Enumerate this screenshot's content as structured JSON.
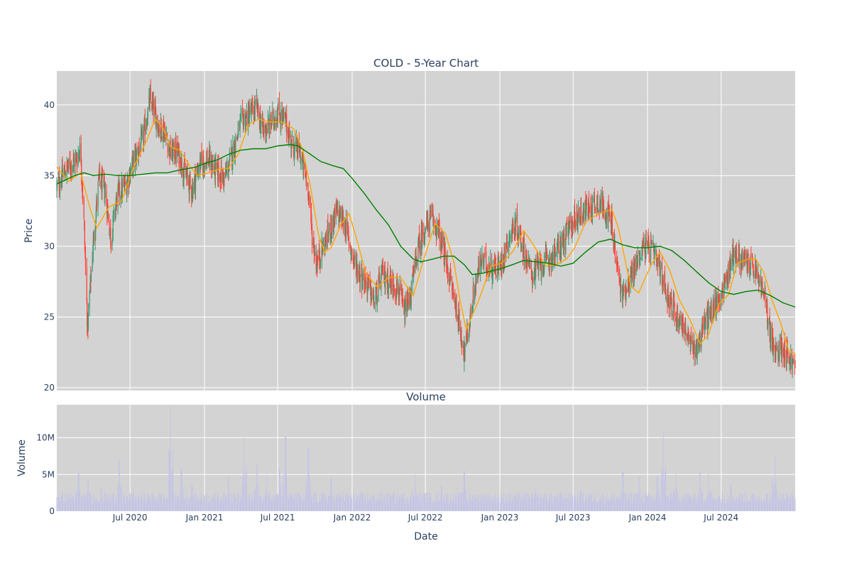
{
  "chart_data": [
    {
      "type": "candlestick",
      "title": "COLD - 5-Year Chart",
      "xlabel": "",
      "ylabel": "Price",
      "ylim": [
        19.8,
        42.4
      ],
      "xlim": [
        "2020-01-02",
        "2024-12-31"
      ],
      "yticks": [
        20,
        25,
        30,
        35,
        40
      ],
      "grid": true,
      "background": "#d3d3d3",
      "up_color": "#3d9970",
      "down_color": "#ff4136",
      "ma_short": {
        "color": "#ffa500",
        "values": [
          [
            "2020-01-02",
            35.6
          ],
          [
            "2020-02-01",
            34.6
          ],
          [
            "2020-03-01",
            35.2
          ],
          [
            "2020-03-25",
            32.6
          ],
          [
            "2020-04-10",
            31.3
          ],
          [
            "2020-05-10",
            32.8
          ],
          [
            "2020-06-10",
            33.2
          ],
          [
            "2020-07-10",
            35.6
          ],
          [
            "2020-08-10",
            37.4
          ],
          [
            "2020-09-01",
            39.0
          ],
          [
            "2020-09-20",
            38.4
          ],
          [
            "2020-10-10",
            37.0
          ],
          [
            "2020-11-01",
            36.8
          ],
          [
            "2020-11-25",
            35.7
          ],
          [
            "2020-12-15",
            35.0
          ],
          [
            "2021-01-10",
            35.2
          ],
          [
            "2021-02-10",
            35.5
          ],
          [
            "2021-03-01",
            35.5
          ],
          [
            "2021-03-25",
            36.5
          ],
          [
            "2021-04-20",
            38.6
          ],
          [
            "2021-05-15",
            39.0
          ],
          [
            "2021-06-10",
            38.8
          ],
          [
            "2021-07-10",
            38.8
          ],
          [
            "2021-07-25",
            38.6
          ],
          [
            "2021-08-10",
            38.3
          ],
          [
            "2021-09-01",
            36.8
          ],
          [
            "2021-09-20",
            34.2
          ],
          [
            "2021-10-10",
            30.8
          ],
          [
            "2021-10-25",
            29.6
          ],
          [
            "2021-11-10",
            29.9
          ],
          [
            "2021-12-05",
            31.6
          ],
          [
            "2021-12-25",
            32.3
          ],
          [
            "2022-01-15",
            30.2
          ],
          [
            "2022-02-05",
            28.0
          ],
          [
            "2022-03-05",
            27.1
          ],
          [
            "2022-04-01",
            27.8
          ],
          [
            "2022-05-01",
            27.8
          ],
          [
            "2022-06-01",
            26.5
          ],
          [
            "2022-06-25",
            28.9
          ],
          [
            "2022-07-25",
            31.6
          ],
          [
            "2022-08-20",
            30.9
          ],
          [
            "2022-09-10",
            28.8
          ],
          [
            "2022-09-25",
            26.1
          ],
          [
            "2022-10-10",
            24.1
          ],
          [
            "2022-11-10",
            26.2
          ],
          [
            "2022-12-10",
            28.6
          ],
          [
            "2023-01-05",
            28.8
          ],
          [
            "2023-02-01",
            29.6
          ],
          [
            "2023-03-01",
            31.1
          ],
          [
            "2023-03-25",
            30.1
          ],
          [
            "2023-04-25",
            28.6
          ],
          [
            "2023-05-20",
            28.7
          ],
          [
            "2023-06-15",
            29.1
          ],
          [
            "2023-07-05",
            29.9
          ],
          [
            "2023-08-01",
            31.7
          ],
          [
            "2023-09-01",
            32.3
          ],
          [
            "2023-10-05",
            32.6
          ],
          [
            "2023-10-20",
            31.4
          ],
          [
            "2023-11-01",
            29.8
          ],
          [
            "2023-11-20",
            27.2
          ],
          [
            "2023-12-10",
            26.7
          ],
          [
            "2024-01-10",
            28.7
          ],
          [
            "2024-02-01",
            29.6
          ],
          [
            "2024-02-25",
            28.3
          ],
          [
            "2024-03-20",
            26.2
          ],
          [
            "2024-04-15",
            24.8
          ],
          [
            "2024-05-10",
            23.1
          ],
          [
            "2024-05-30",
            23.7
          ],
          [
            "2024-06-25",
            25.9
          ],
          [
            "2024-07-20",
            26.6
          ],
          [
            "2024-08-10",
            28.8
          ],
          [
            "2024-09-05",
            29.1
          ],
          [
            "2024-09-25",
            29.1
          ],
          [
            "2024-10-15",
            28.1
          ],
          [
            "2024-11-05",
            26.1
          ],
          [
            "2024-11-25",
            24.6
          ],
          [
            "2024-12-15",
            22.6
          ],
          [
            "2024-12-31",
            22.4
          ]
        ]
      },
      "ma_long": {
        "color": "#008000",
        "values": [
          [
            "2020-01-02",
            34.4
          ],
          [
            "2020-02-15",
            35.0
          ],
          [
            "2020-03-10",
            35.2
          ],
          [
            "2020-04-01",
            35.0
          ],
          [
            "2020-05-01",
            35.1
          ],
          [
            "2020-06-01",
            35.0
          ],
          [
            "2020-07-01",
            35.0
          ],
          [
            "2020-08-01",
            35.1
          ],
          [
            "2020-09-01",
            35.2
          ],
          [
            "2020-10-01",
            35.2
          ],
          [
            "2020-11-01",
            35.4
          ],
          [
            "2020-12-10",
            35.6
          ],
          [
            "2021-01-05",
            35.9
          ],
          [
            "2021-02-01",
            36.1
          ],
          [
            "2021-03-01",
            36.5
          ],
          [
            "2021-04-01",
            36.8
          ],
          [
            "2021-05-01",
            36.9
          ],
          [
            "2021-06-01",
            36.9
          ],
          [
            "2021-07-01",
            37.1
          ],
          [
            "2021-08-01",
            37.2
          ],
          [
            "2021-08-20",
            37.1
          ],
          [
            "2021-09-15",
            36.6
          ],
          [
            "2021-10-15",
            36.0
          ],
          [
            "2021-11-15",
            35.7
          ],
          [
            "2021-12-10",
            35.5
          ],
          [
            "2022-01-01",
            34.8
          ],
          [
            "2022-02-01",
            33.7
          ],
          [
            "2022-03-01",
            32.6
          ],
          [
            "2022-04-01",
            31.5
          ],
          [
            "2022-05-01",
            30.0
          ],
          [
            "2022-06-01",
            29.1
          ],
          [
            "2022-06-20",
            28.9
          ],
          [
            "2022-07-20",
            29.1
          ],
          [
            "2022-08-15",
            29.3
          ],
          [
            "2022-09-10",
            29.3
          ],
          [
            "2022-10-05",
            28.7
          ],
          [
            "2022-10-25",
            28.0
          ],
          [
            "2022-11-20",
            28.1
          ],
          [
            "2023-01-01",
            28.4
          ],
          [
            "2023-02-01",
            28.7
          ],
          [
            "2023-03-01",
            29.0
          ],
          [
            "2023-04-01",
            28.9
          ],
          [
            "2023-05-01",
            28.8
          ],
          [
            "2023-06-01",
            28.6
          ],
          [
            "2023-07-01",
            28.8
          ],
          [
            "2023-08-01",
            29.6
          ],
          [
            "2023-09-01",
            30.3
          ],
          [
            "2023-10-01",
            30.5
          ],
          [
            "2023-11-01",
            30.1
          ],
          [
            "2023-12-01",
            29.9
          ],
          [
            "2024-01-01",
            29.9
          ],
          [
            "2024-02-01",
            30.0
          ],
          [
            "2024-03-01",
            29.7
          ],
          [
            "2024-04-01",
            29.0
          ],
          [
            "2024-05-01",
            28.2
          ],
          [
            "2024-06-01",
            27.4
          ],
          [
            "2024-07-01",
            26.8
          ],
          [
            "2024-08-01",
            26.6
          ],
          [
            "2024-09-01",
            26.8
          ],
          [
            "2024-10-01",
            26.9
          ],
          [
            "2024-11-01",
            26.5
          ],
          [
            "2024-12-01",
            26.0
          ],
          [
            "2024-12-31",
            25.7
          ]
        ]
      },
      "close_anchors": [
        [
          "2020-01-02",
          34.2
        ],
        [
          "2020-01-25",
          35.4
        ],
        [
          "2020-02-20",
          36.2
        ],
        [
          "2020-03-01",
          37.0
        ],
        [
          "2020-03-10",
          31.0
        ],
        [
          "2020-03-18",
          24.2
        ],
        [
          "2020-03-30",
          29.5
        ],
        [
          "2020-04-15",
          34.8
        ],
        [
          "2020-05-01",
          33.8
        ],
        [
          "2020-05-15",
          30.5
        ],
        [
          "2020-05-30",
          33.6
        ],
        [
          "2020-06-20",
          34.3
        ],
        [
          "2020-07-10",
          36.0
        ],
        [
          "2020-08-01",
          37.5
        ],
        [
          "2020-08-20",
          40.4
        ],
        [
          "2020-09-10",
          38.5
        ],
        [
          "2020-09-25",
          38.2
        ],
        [
          "2020-10-10",
          36.5
        ],
        [
          "2020-10-25",
          36.8
        ],
        [
          "2020-11-15",
          35.0
        ],
        [
          "2020-12-01",
          34.0
        ],
        [
          "2020-12-20",
          35.8
        ],
        [
          "2021-01-10",
          36.2
        ],
        [
          "2021-02-01",
          35.2
        ],
        [
          "2021-02-20",
          34.8
        ],
        [
          "2021-03-10",
          36.5
        ],
        [
          "2021-04-01",
          38.8
        ],
        [
          "2021-04-20",
          39.3
        ],
        [
          "2021-05-10",
          39.8
        ],
        [
          "2021-05-25",
          38.2
        ],
        [
          "2021-06-10",
          38.5
        ],
        [
          "2021-07-01",
          39.5
        ],
        [
          "2021-07-20",
          38.8
        ],
        [
          "2021-08-05",
          37.2
        ],
        [
          "2021-08-25",
          36.6
        ],
        [
          "2021-09-15",
          34.0
        ],
        [
          "2021-09-25",
          30.5
        ],
        [
          "2021-10-05",
          28.8
        ],
        [
          "2021-10-20",
          29.9
        ],
        [
          "2021-11-05",
          31.0
        ],
        [
          "2021-11-25",
          32.5
        ],
        [
          "2021-12-15",
          31.5
        ],
        [
          "2022-01-05",
          29.0
        ],
        [
          "2022-01-25",
          27.8
        ],
        [
          "2022-02-10",
          27.2
        ],
        [
          "2022-02-25",
          26.0
        ],
        [
          "2022-03-15",
          28.0
        ],
        [
          "2022-04-05",
          27.5
        ],
        [
          "2022-04-25",
          27.0
        ],
        [
          "2022-05-10",
          25.2
        ],
        [
          "2022-05-25",
          26.5
        ],
        [
          "2022-06-10",
          29.5
        ],
        [
          "2022-06-25",
          31.0
        ],
        [
          "2022-07-15",
          32.0
        ],
        [
          "2022-08-01",
          31.2
        ],
        [
          "2022-08-20",
          29.0
        ],
        [
          "2022-09-05",
          27.0
        ],
        [
          "2022-09-20",
          25.0
        ],
        [
          "2022-10-05",
          22.5
        ],
        [
          "2022-10-15",
          24.0
        ],
        [
          "2022-10-30",
          27.0
        ],
        [
          "2022-11-15",
          29.0
        ],
        [
          "2022-12-10",
          28.5
        ],
        [
          "2023-01-01",
          28.5
        ],
        [
          "2023-01-25",
          30.8
        ],
        [
          "2023-02-10",
          31.5
        ],
        [
          "2023-03-01",
          29.8
        ],
        [
          "2023-03-20",
          28.0
        ],
        [
          "2023-04-10",
          28.6
        ],
        [
          "2023-05-01",
          29.0
        ],
        [
          "2023-05-20",
          29.6
        ],
        [
          "2023-06-10",
          30.5
        ],
        [
          "2023-07-01",
          31.8
        ],
        [
          "2023-07-25",
          32.5
        ],
        [
          "2023-08-15",
          32.8
        ],
        [
          "2023-09-01",
          33.2
        ],
        [
          "2023-09-20",
          32.6
        ],
        [
          "2023-10-05",
          31.5
        ],
        [
          "2023-10-15",
          29.0
        ],
        [
          "2023-10-30",
          26.5
        ],
        [
          "2023-11-15",
          27.5
        ],
        [
          "2023-12-01",
          28.5
        ],
        [
          "2023-12-20",
          30.0
        ],
        [
          "2024-01-10",
          29.8
        ],
        [
          "2024-01-30",
          28.5
        ],
        [
          "2024-02-20",
          26.5
        ],
        [
          "2024-03-10",
          25.2
        ],
        [
          "2024-03-30",
          24.5
        ],
        [
          "2024-04-15",
          23.0
        ],
        [
          "2024-05-01",
          22.8
        ],
        [
          "2024-05-20",
          24.5
        ],
        [
          "2024-06-10",
          25.5
        ],
        [
          "2024-06-25",
          26.2
        ],
        [
          "2024-07-15",
          27.8
        ],
        [
          "2024-08-01",
          29.6
        ],
        [
          "2024-08-20",
          29.0
        ],
        [
          "2024-09-10",
          28.8
        ],
        [
          "2024-09-30",
          27.8
        ],
        [
          "2024-10-15",
          26.5
        ],
        [
          "2024-10-30",
          24.0
        ],
        [
          "2024-11-10",
          22.2
        ],
        [
          "2024-11-25",
          23.0
        ],
        [
          "2024-12-10",
          22.5
        ],
        [
          "2024-12-31",
          21.3
        ]
      ]
    },
    {
      "type": "bar",
      "title": "Volume",
      "xlabel": "Date",
      "ylabel": "Volume",
      "ylim": [
        0,
        14500000
      ],
      "yticks": [
        {
          "value": 0,
          "label": "0"
        },
        {
          "value": 5000000,
          "label": "5M"
        },
        {
          "value": 10000000,
          "label": "10M"
        }
      ],
      "xticks": [
        {
          "date": "2020-07-01",
          "label": "Jul 2020"
        },
        {
          "date": "2021-01-01",
          "label": "Jan 2021"
        },
        {
          "date": "2021-07-01",
          "label": "Jul 2021"
        },
        {
          "date": "2022-01-01",
          "label": "Jan 2022"
        },
        {
          "date": "2022-07-01",
          "label": "Jul 2022"
        },
        {
          "date": "2023-01-01",
          "label": "Jan 2023"
        },
        {
          "date": "2023-07-01",
          "label": "Jul 2023"
        },
        {
          "date": "2024-01-01",
          "label": "Jan 2024"
        },
        {
          "date": "2024-07-01",
          "label": "Jul 2024"
        }
      ],
      "bar_color": "#c5c5e6",
      "background": "#d3d3d3",
      "grid": true,
      "baseline": 1800000,
      "spikes": [
        [
          "2020-02-25",
          5200000
        ],
        [
          "2020-03-20",
          4300000
        ],
        [
          "2020-04-20",
          3200000
        ],
        [
          "2020-06-05",
          7000000
        ],
        [
          "2020-10-10",
          14200000
        ],
        [
          "2020-11-05",
          5800000
        ],
        [
          "2020-12-01",
          3500000
        ],
        [
          "2021-03-01",
          4800000
        ],
        [
          "2021-04-10",
          10000000
        ],
        [
          "2021-05-10",
          6300000
        ],
        [
          "2021-06-05",
          4800000
        ],
        [
          "2021-07-05",
          6000000
        ],
        [
          "2021-07-20",
          10200000
        ],
        [
          "2021-09-15",
          8700000
        ],
        [
          "2021-11-10",
          4500000
        ],
        [
          "2022-06-05",
          5000000
        ],
        [
          "2022-08-10",
          3500000
        ],
        [
          "2022-10-05",
          5500000
        ],
        [
          "2023-04-01",
          3500000
        ],
        [
          "2023-07-20",
          2800000
        ],
        [
          "2023-11-01",
          5400000
        ],
        [
          "2023-12-10",
          4600000
        ],
        [
          "2024-01-25",
          4800000
        ],
        [
          "2024-02-10",
          10900000
        ],
        [
          "2024-03-10",
          5200000
        ],
        [
          "2024-05-10",
          5300000
        ],
        [
          "2024-06-01",
          5100000
        ],
        [
          "2024-07-25",
          3700000
        ],
        [
          "2024-11-10",
          7500000
        ]
      ]
    }
  ]
}
